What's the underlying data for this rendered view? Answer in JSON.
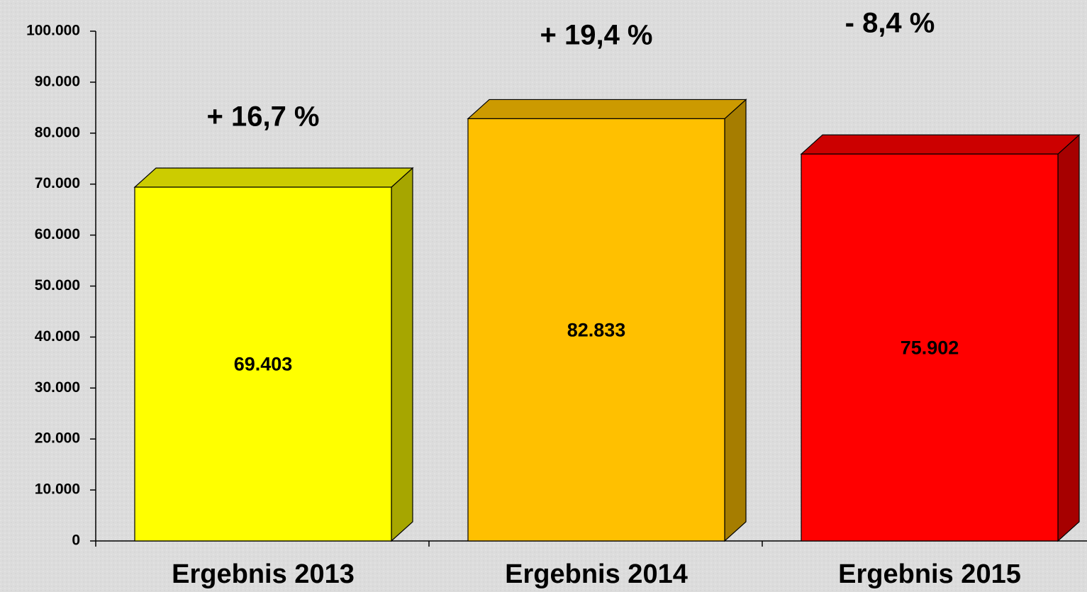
{
  "chart_data": {
    "type": "bar3d",
    "categories": [
      "Ergebnis 2013",
      "Ergebnis 2014",
      "Ergebnis 2015"
    ],
    "values": [
      69403,
      82833,
      75902
    ],
    "value_labels": [
      "69.403",
      "82.833",
      "75.902"
    ],
    "colors": [
      "#ffff00",
      "#ffc000",
      "#ff0000"
    ],
    "annotations": [
      "+ 16,7 %",
      "+ 19,4 %",
      "- 8,4 %"
    ],
    "ylim": [
      0,
      100000
    ],
    "yticks": [
      0,
      {
        "value": 10000,
        "label": "10.000"
      },
      {
        "value": 20000,
        "label": "20.000"
      },
      {
        "value": 30000,
        "label": "30.000"
      },
      {
        "value": 40000,
        "label": "40.000"
      },
      {
        "value": 50000,
        "label": "50.000"
      },
      {
        "value": 60000,
        "label": "60.000"
      },
      {
        "value": 70000,
        "label": "70.000"
      },
      {
        "value": 80000,
        "label": "80.000"
      },
      {
        "value": 90000,
        "label": "90.000"
      },
      {
        "value": 100000,
        "label": "100.000"
      }
    ],
    "grid": false
  }
}
